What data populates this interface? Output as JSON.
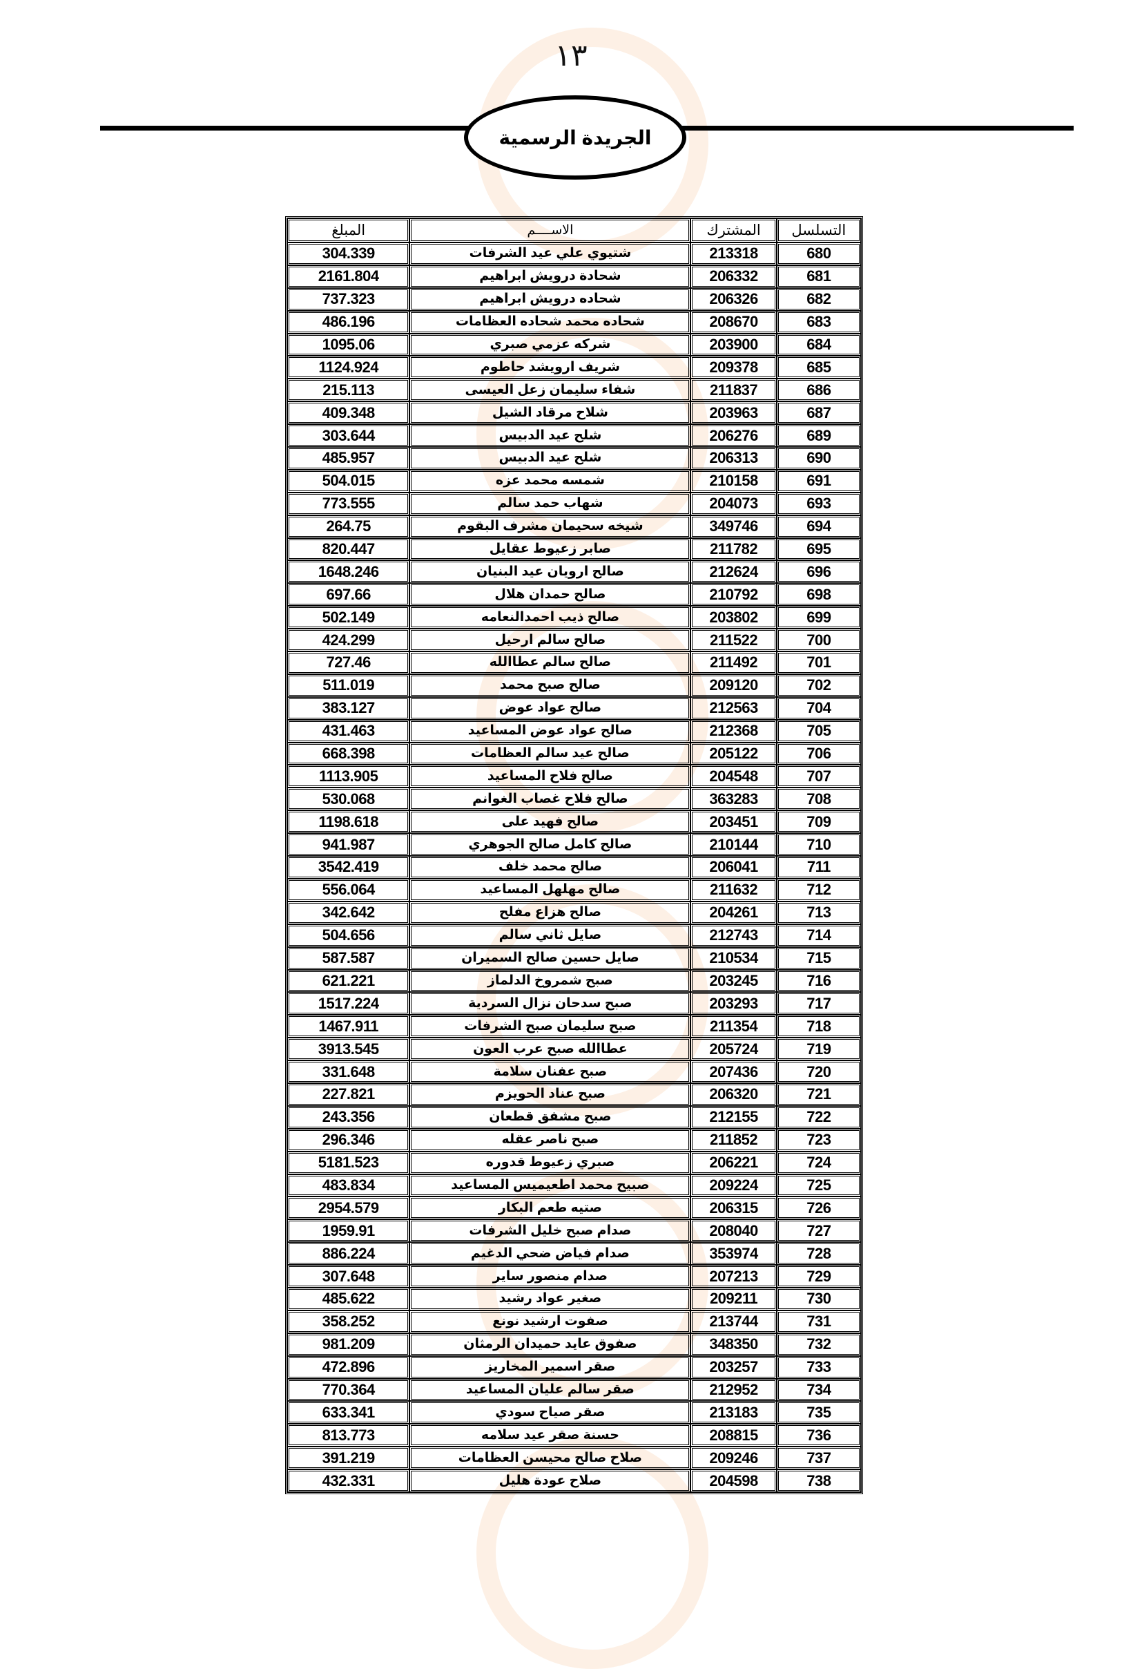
{
  "page_number": "١٣",
  "header_title": "الجريدة الرسمية",
  "columns": {
    "serial": "التسلسل",
    "subscriber": "المشترك",
    "name": "الاســــم",
    "amount": "المبلغ"
  },
  "rows": [
    [
      "680",
      "213318",
      "شتيوي علي عيد الشرفات",
      "304.339"
    ],
    [
      "681",
      "206332",
      "شحادة درويش ابراهيم",
      "2161.804"
    ],
    [
      "682",
      "206326",
      "شحاده درويش ابراهيم",
      "737.323"
    ],
    [
      "683",
      "208670",
      "شحاده محمد شحاده العظامات",
      "486.196"
    ],
    [
      "684",
      "203900",
      "شركه عزمي صبري",
      "1095.06"
    ],
    [
      "685",
      "209378",
      "شريف ارويشد حاطوم",
      "1124.924"
    ],
    [
      "686",
      "211837",
      "شفاء سليمان زعل العيسى",
      "215.113"
    ],
    [
      "687",
      "203963",
      "شلاح مرقاد الشيل",
      "409.348"
    ],
    [
      "689",
      "206276",
      "شلح عيد الدبيس",
      "303.644"
    ],
    [
      "690",
      "206313",
      "شلح عيد الدبيس",
      "485.957"
    ],
    [
      "691",
      "210158",
      "شمسه محمد عزه",
      "504.015"
    ],
    [
      "693",
      "204073",
      "شهاب  حمد سالم",
      "773.555"
    ],
    [
      "694",
      "349746",
      "شيخه سحيمان مشرف البقوم",
      "264.75"
    ],
    [
      "695",
      "211782",
      "صابر  زعيوط  عقايل",
      "820.447"
    ],
    [
      "696",
      "212624",
      "صالح ارويان عيد البنيان",
      "1648.246"
    ],
    [
      "698",
      "210792",
      "صالح حمدان هلال",
      "697.66"
    ],
    [
      "699",
      "203802",
      "صالح ذيب احمدالنعامه",
      "502.149"
    ],
    [
      "700",
      "211522",
      "صالح سالم ارحيل",
      "424.299"
    ],
    [
      "701",
      "211492",
      "صالح سالم عطاالله",
      "727.46"
    ],
    [
      "702",
      "209120",
      "صالح صبح محمد",
      "511.019"
    ],
    [
      "704",
      "212563",
      "صالح عواد عوض",
      "383.127"
    ],
    [
      "705",
      "212368",
      "صالح عواد عوض المساعيد",
      "431.463"
    ],
    [
      "706",
      "205122",
      "صالح عيد سالم العظامات",
      "668.398"
    ],
    [
      "707",
      "204548",
      "صالح فلاح المساعيد",
      "1113.905"
    ],
    [
      "708",
      "363283",
      "صالح فلاح غصاب الغوانم",
      "530.068"
    ],
    [
      "709",
      "203451",
      "صالح فهيد على",
      "1198.618"
    ],
    [
      "710",
      "210144",
      "صالح كامل صالح الجوهري",
      "941.987"
    ],
    [
      "711",
      "206041",
      "صالح محمد خلف",
      "3542.419"
    ],
    [
      "712",
      "211632",
      "صالح مهلهل المساعيد",
      "556.064"
    ],
    [
      "713",
      "204261",
      "صالح هزاع مفلح",
      "342.642"
    ],
    [
      "714",
      "212743",
      "صايل ثاني سالم",
      "504.656"
    ],
    [
      "715",
      "210534",
      "صايل حسين صالح السميران",
      "587.587"
    ],
    [
      "716",
      "203245",
      "صبح  شمروخ الدلماز",
      "621.221"
    ],
    [
      "717",
      "203293",
      "صبح سدحان نزال السردية",
      "1517.224"
    ],
    [
      "718",
      "211354",
      "صبح سليمان صبح الشرفات",
      "1467.911"
    ],
    [
      "719",
      "205724",
      "عطاالله صبح عرب العون",
      "3913.545"
    ],
    [
      "720",
      "207436",
      "صبح عفنان سلامة",
      "331.648"
    ],
    [
      "721",
      "206320",
      "صبح عناد الحويزم",
      "227.821"
    ],
    [
      "722",
      "212155",
      "صبح مشفق قطعان",
      "243.356"
    ],
    [
      "723",
      "211852",
      "صبح ناصر عقله",
      "296.346"
    ],
    [
      "724",
      "206221",
      "صبري زعيوط قدوره",
      "5181.523"
    ],
    [
      "725",
      "209224",
      "صبيح محمد اطعيميس المساعيد",
      "483.834"
    ],
    [
      "726",
      "206315",
      "صتيه طعم البكار",
      "2954.579"
    ],
    [
      "727",
      "208040",
      "صدام صبح خليل الشرفات",
      "1959.91"
    ],
    [
      "728",
      "353974",
      "صدام فياض ضحي الدغيم",
      "886.224"
    ],
    [
      "729",
      "207213",
      "صدام منصور ساير",
      "307.648"
    ],
    [
      "730",
      "209211",
      "صغير عواد رشيد",
      "485.622"
    ],
    [
      "731",
      "213744",
      "صفوت  ارشيد نونع",
      "358.252"
    ],
    [
      "732",
      "348350",
      "صفوق عايد حميدان الرمثان",
      "981.209"
    ],
    [
      "733",
      "203257",
      "صقر اسمير المخاريز",
      "472.896"
    ],
    [
      "734",
      "212952",
      "صقر سالم عليان المساعيد",
      "770.364"
    ],
    [
      "735",
      "213183",
      "صقر صياح سودي",
      "633.341"
    ],
    [
      "736",
      "208815",
      "حسنة صقر عيد سلامه",
      "813.773"
    ],
    [
      "737",
      "209246",
      "صلاح صالح محيسن العظامات",
      "391.219"
    ],
    [
      "738",
      "204598",
      "صلاح عودة هليل",
      "432.331"
    ]
  ]
}
